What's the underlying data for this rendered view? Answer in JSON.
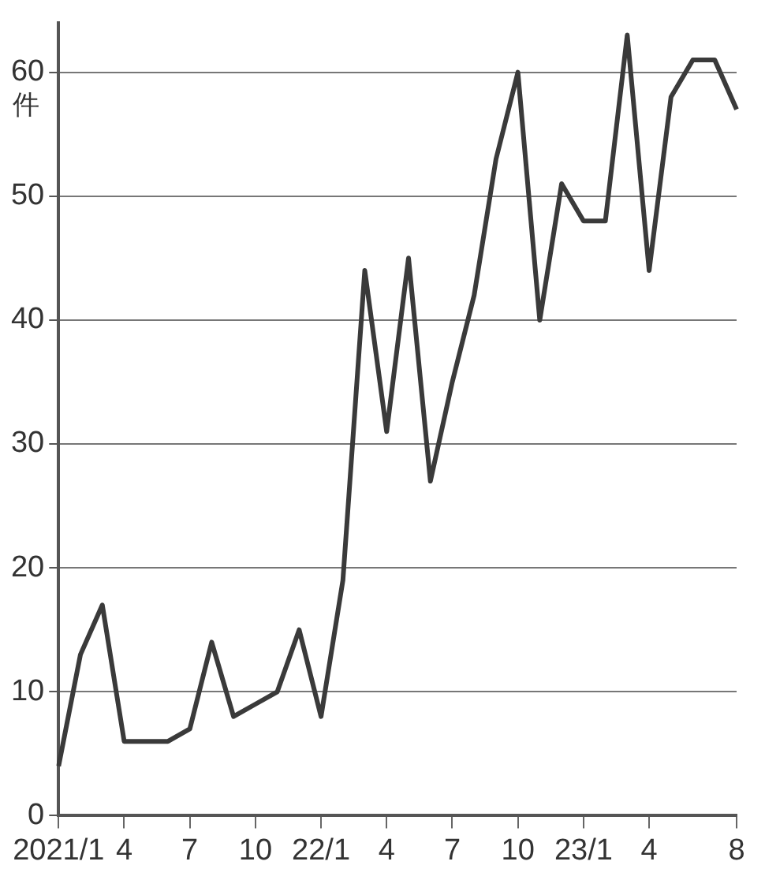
{
  "chart_data": {
    "type": "line",
    "ylabel": "件",
    "categories": [
      "2021/1",
      null,
      null,
      "4",
      null,
      null,
      "7",
      null,
      null,
      "10",
      null,
      null,
      "22/1",
      null,
      null,
      "4",
      null,
      null,
      "7",
      null,
      null,
      "10",
      null,
      null,
      "23/1",
      null,
      null,
      "4",
      null,
      null,
      null,
      "8"
    ],
    "series": [
      {
        "color": "#3a3a3a",
        "values": [
          4,
          13,
          17,
          6,
          6,
          6,
          7,
          14,
          8,
          9,
          10,
          15,
          8,
          19,
          44,
          31,
          45,
          27,
          35,
          42,
          53,
          60,
          40,
          51,
          48,
          48,
          63,
          44,
          58,
          61,
          61,
          57
        ]
      }
    ],
    "ylim": [
      0,
      64
    ],
    "yticks": [
      0,
      10,
      20,
      30,
      40,
      50,
      60
    ],
    "grid": "y",
    "legend": false,
    "marker": "none",
    "line_style": "solid"
  }
}
